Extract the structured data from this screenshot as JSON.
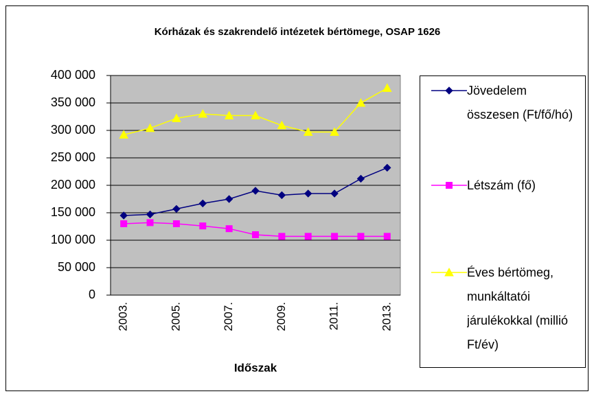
{
  "chart_data": {
    "type": "line",
    "title": "Kórházak és szakrendelő intézetek bértömege, OSAP 1626",
    "x_label": "Időszak",
    "categories": [
      "2003.",
      null,
      "2005.",
      null,
      "2007.",
      null,
      "2009.",
      null,
      "2011.",
      null,
      "2013."
    ],
    "series": [
      {
        "name": "Jövedelem összesen (Ft/fő/hó)",
        "color": "#000080",
        "marker": "diamond",
        "values": [
          145000,
          147000,
          157000,
          167000,
          175000,
          190000,
          182000,
          185000,
          185000,
          212000,
          232000
        ]
      },
      {
        "name": "Létszám (fő)",
        "color": "#ff00ff",
        "marker": "square",
        "values": [
          130000,
          132000,
          130000,
          126000,
          121000,
          110000,
          107000,
          107000,
          107000,
          107000,
          107000
        ]
      },
      {
        "name": "Éves bértömeg, munkáltatói járulékokkal (millió Ft/év)",
        "color": "#ffff00",
        "marker": "triangle",
        "values": [
          292000,
          304000,
          322000,
          330000,
          327000,
          327000,
          309000,
          297000,
          297000,
          350000,
          377000
        ]
      }
    ],
    "ylim": [
      0,
      400000
    ],
    "yticks": [
      0,
      {
        "value": 50000,
        "label": "50 000"
      },
      {
        "value": 100000,
        "label": "100 000"
      },
      {
        "value": 150000,
        "label": "150 000"
      },
      {
        "value": 200000,
        "label": "200 000"
      },
      {
        "value": 250000,
        "label": "250 000"
      },
      {
        "value": 300000,
        "label": "300 000"
      },
      {
        "value": 350000,
        "label": "350 000"
      },
      {
        "value": 400000,
        "label": "400 000"
      }
    ],
    "grid": true,
    "legend": "right",
    "plot_background": "#c0c0c0"
  }
}
